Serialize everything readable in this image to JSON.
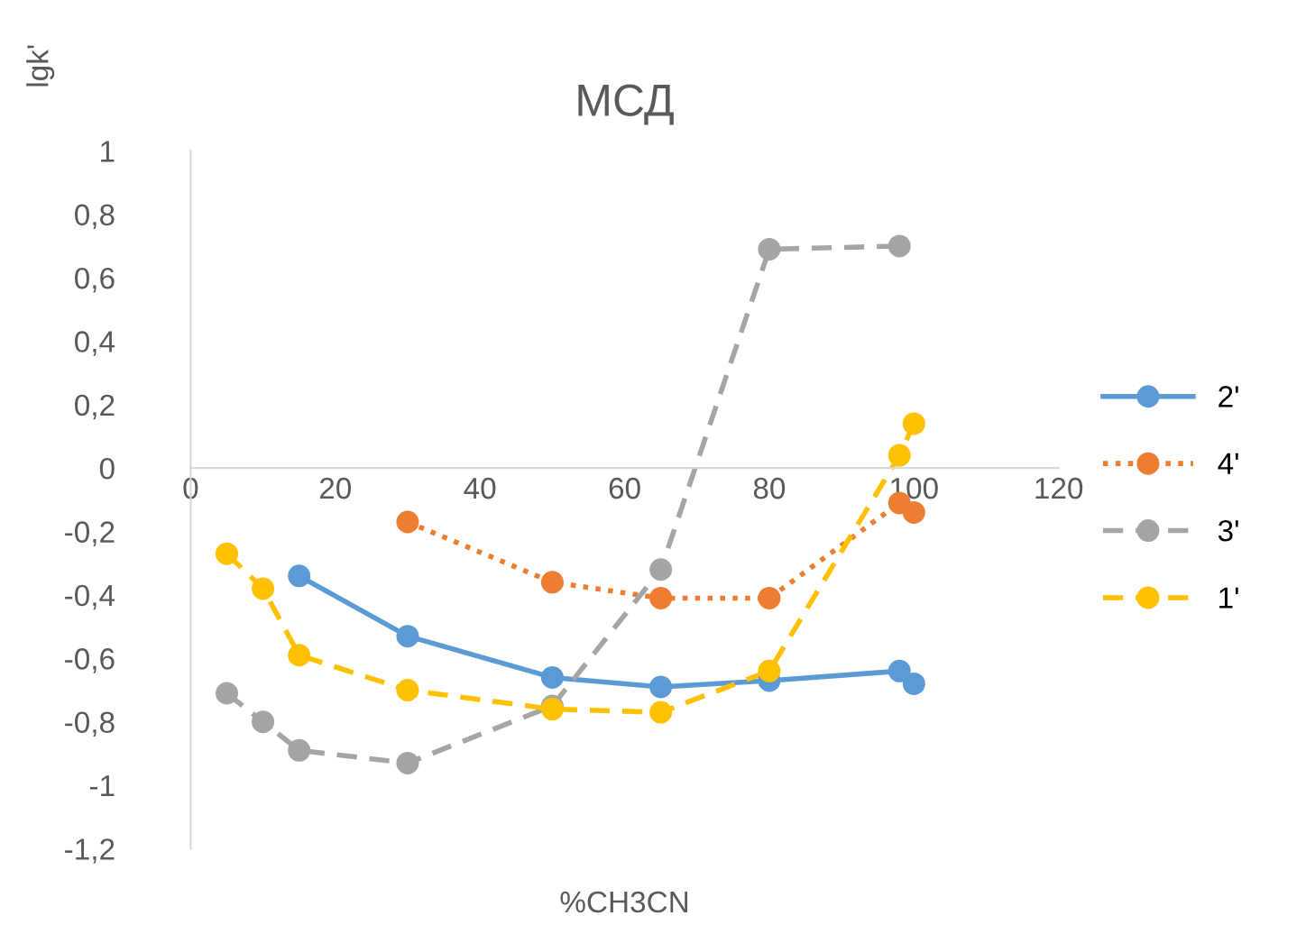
{
  "chart_data": {
    "type": "line",
    "title": "МСД",
    "xlabel": "%CH3CN",
    "ylabel": "lgk'",
    "series": [
      {
        "name": "2'",
        "color": "#5b9bd5",
        "line_style": "solid",
        "x": [
          15,
          30,
          50,
          65,
          80,
          98,
          100
        ],
        "values": [
          -0.34,
          -0.53,
          -0.66,
          -0.69,
          -0.67,
          -0.64,
          -0.68
        ]
      },
      {
        "name": "4'",
        "color": "#ed7d31",
        "line_style": "dotted",
        "x": [
          30,
          50,
          65,
          80,
          98,
          100
        ],
        "values": [
          -0.17,
          -0.36,
          -0.41,
          -0.41,
          -0.11,
          -0.14
        ]
      },
      {
        "name": "3'",
        "color": "#a5a5a5",
        "line_style": "dashed",
        "x": [
          5,
          10,
          15,
          30,
          50,
          65,
          80,
          98
        ],
        "values": [
          -0.71,
          -0.8,
          -0.89,
          -0.93,
          -0.75,
          -0.32,
          0.69,
          0.7
        ]
      },
      {
        "name": "1'",
        "color": "#ffc000",
        "line_style": "dashed",
        "x": [
          5,
          10,
          15,
          30,
          50,
          65,
          80,
          98,
          100
        ],
        "values": [
          -0.27,
          -0.38,
          -0.59,
          -0.7,
          -0.76,
          -0.77,
          -0.64,
          0.04,
          0.14
        ]
      }
    ],
    "marker": "circle",
    "xlim": [
      0,
      120
    ],
    "xticks": [
      0,
      20,
      40,
      60,
      80,
      100,
      120
    ],
    "ylim": [
      -1.2,
      1
    ],
    "yticks": [
      {
        "value": -1.2,
        "label": "-1,2"
      },
      {
        "value": -1,
        "label": "-1"
      },
      {
        "value": -0.8,
        "label": "-0,8"
      },
      {
        "value": -0.6,
        "label": "-0,6"
      },
      {
        "value": -0.4,
        "label": "-0,4"
      },
      {
        "value": -0.2,
        "label": "-0,2"
      },
      {
        "value": 0,
        "label": "0"
      },
      {
        "value": 0.2,
        "label": "0,2"
      },
      {
        "value": 0.4,
        "label": "0,4"
      },
      {
        "value": 0.6,
        "label": "0,6"
      },
      {
        "value": 0.8,
        "label": "0,8"
      },
      {
        "value": 1,
        "label": "1"
      }
    ],
    "grid": false,
    "legend": "right"
  }
}
